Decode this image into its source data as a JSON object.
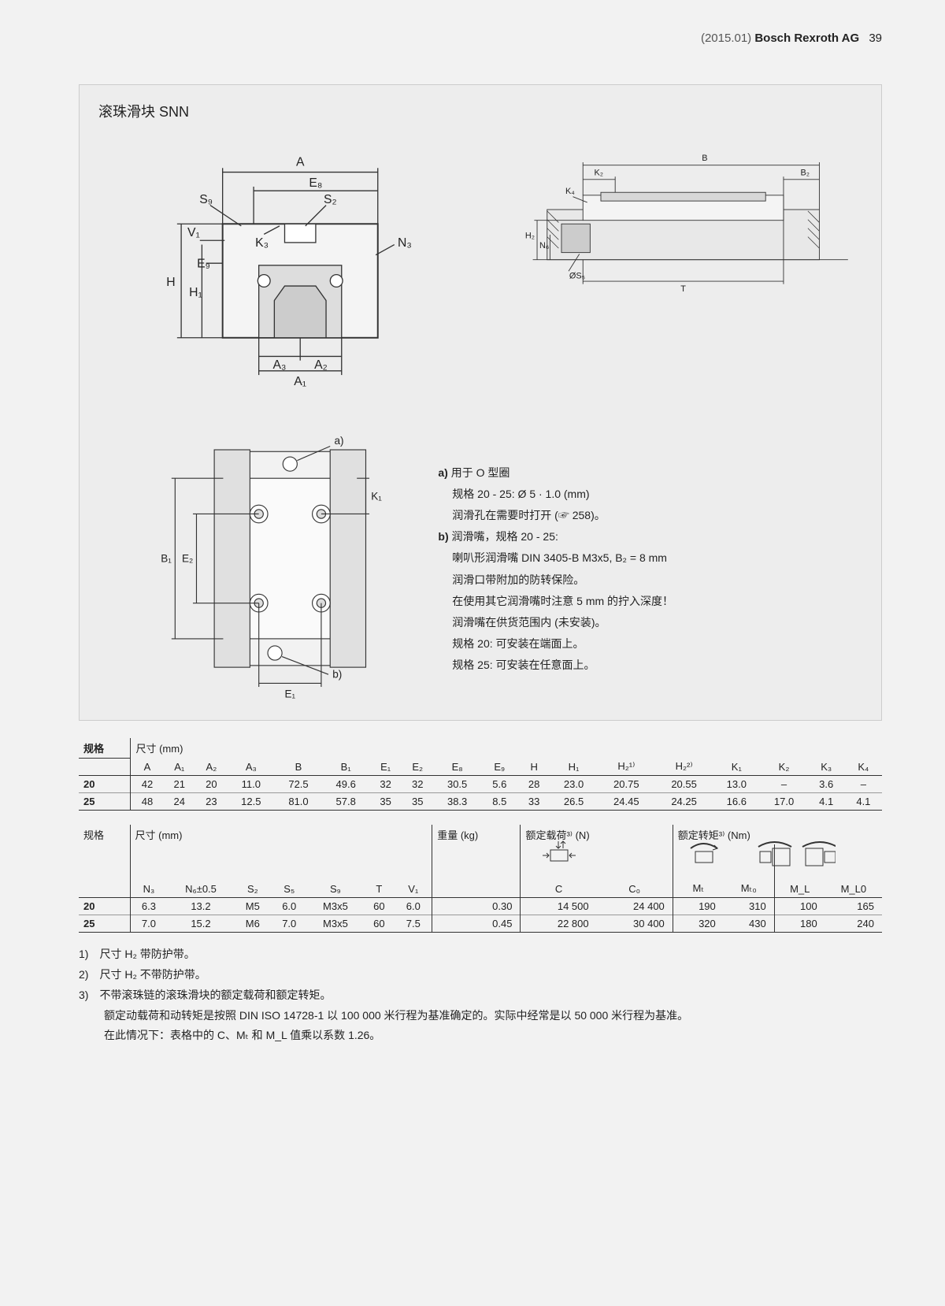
{
  "header": {
    "date": "(2015.01)",
    "brand": "Bosch Rexroth AG",
    "pagenum": "39"
  },
  "section_title": "滚珠滑块 SNN",
  "dim_labels": {
    "A": "A",
    "E8": "E₈",
    "S9": "S₉",
    "S2": "S₂",
    "V1": "V₁",
    "K3": "K₃",
    "E9": "E₉",
    "H": "H",
    "H1": "H₁",
    "N3": "N₃",
    "A3": "A₃",
    "A2": "A₂",
    "A1": "A₁",
    "B": "B",
    "K2": "K₂",
    "B2": "B₂",
    "K4": "K₄",
    "H2": "H₂",
    "N6": "N₆",
    "S5": "ØS₅",
    "T": "T",
    "B1": "B₁",
    "E2": "E₂",
    "E1": "E₁",
    "K1": "K₁",
    "a": "a)",
    "b": "b)"
  },
  "notes": {
    "a_label": "a)",
    "a1": "用于 O 型圈",
    "a2": "规格 20 - 25: Ø 5 · 1.0 (mm)",
    "a3": "润滑孔在需要时打开 (☞ 258)。",
    "b_label": "b)",
    "b1": "润滑嘴，规格 20 - 25:",
    "b2": "喇叭形润滑嘴 DIN 3405-B M3x5, B₂ = 8 mm",
    "b3": "润滑口带附加的防转保险。",
    "b4": "在使用其它润滑嘴时注意 5 mm 的拧入深度！",
    "b5": "润滑嘴在供货范围内 (未安装)。",
    "b6": "规格 20: 可安装在端面上。",
    "b7": "规格 25: 可安装在任意面上。"
  },
  "table1": {
    "group1": "规格",
    "group2": "尺寸 (mm)",
    "cols": [
      "A",
      "A₁",
      "A₂",
      "A₃",
      "B",
      "B₁",
      "E₁",
      "E₂",
      "E₈",
      "E₉",
      "H",
      "H₁",
      "H₂¹⁾",
      "H₂²⁾",
      "K₁",
      "K₂",
      "K₃",
      "K₄"
    ],
    "rows": [
      {
        "k": "20",
        "v": [
          "42",
          "21",
          "20",
          "11.0",
          "72.5",
          "49.6",
          "32",
          "32",
          "30.5",
          "5.6",
          "28",
          "23.0",
          "20.75",
          "20.55",
          "13.0",
          "–",
          "3.6",
          "–"
        ]
      },
      {
        "k": "25",
        "v": [
          "48",
          "24",
          "23",
          "12.5",
          "81.0",
          "57.8",
          "35",
          "35",
          "38.3",
          "8.5",
          "33",
          "26.5",
          "24.45",
          "24.25",
          "16.6",
          "17.0",
          "4.1",
          "4.1"
        ]
      }
    ]
  },
  "table2": {
    "group1": "规格",
    "group2": "尺寸 (mm)",
    "group3": "重量 (kg)",
    "group4": "额定载荷³⁾ (N)",
    "group5": "额定转矩³⁾ (Nm)",
    "cols1": [
      "N₃",
      "N₆±0.5",
      "S₂",
      "S₅",
      "S₉",
      "T",
      "V₁"
    ],
    "cols2": [
      "",
      "C",
      "C₀"
    ],
    "cols3": [
      "Mₜ",
      "Mₜ₀",
      "M_L",
      "M_L0"
    ],
    "rows": [
      {
        "k": "20",
        "a": [
          "6.3",
          "13.2",
          "M5",
          "6.0",
          "M3x5",
          "60",
          "6.0"
        ],
        "b": [
          "0.30",
          "14 500",
          "24 400"
        ],
        "c": [
          "190",
          "310",
          "100",
          "165"
        ]
      },
      {
        "k": "25",
        "a": [
          "7.0",
          "15.2",
          "M6",
          "7.0",
          "M3x5",
          "60",
          "7.5"
        ],
        "b": [
          "0.45",
          "22 800",
          "30 400"
        ],
        "c": [
          "320",
          "430",
          "180",
          "240"
        ]
      }
    ]
  },
  "footnotes": {
    "f1": "1)　尺寸 H₂ 带防护带。",
    "f2": "2)　尺寸 H₂ 不带防护带。",
    "f3a": "3)　不带滚珠链的滚珠滑块的额定载荷和额定转矩。",
    "f3b": "额定动载荷和动转矩是按照 DIN ISO 14728-1 以 100 000 米行程为基准确定的。实际中经常是以 50 000 米行程为基准。",
    "f3c": "在此情况下：表格中的 C、Mₜ 和 M_L 值乘以系数 1.26。"
  }
}
